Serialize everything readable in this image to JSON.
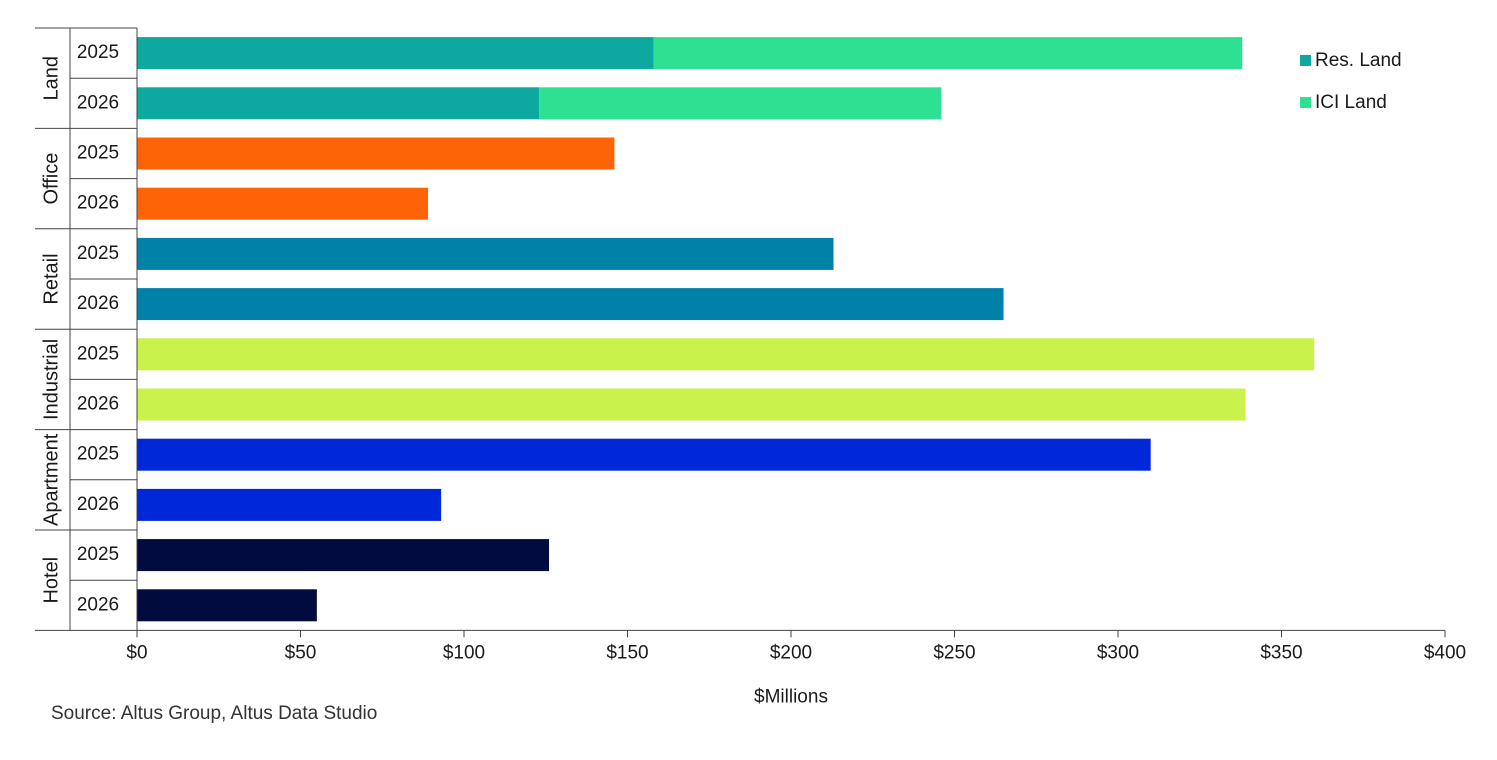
{
  "chart_data": {
    "type": "bar",
    "orientation": "horizontal",
    "stacked": true,
    "groups": [
      {
        "name": "Land",
        "rows": [
          {
            "year": "2025",
            "segments": [
              {
                "series": "Res. Land",
                "value": 158
              },
              {
                "series": "ICI Land",
                "value": 180
              }
            ]
          },
          {
            "year": "2026",
            "segments": [
              {
                "series": "Res. Land",
                "value": 123
              },
              {
                "series": "ICI Land",
                "value": 123
              }
            ]
          }
        ]
      },
      {
        "name": "Office",
        "rows": [
          {
            "year": "2025",
            "segments": [
              {
                "series": "Office",
                "value": 146
              }
            ]
          },
          {
            "year": "2026",
            "segments": [
              {
                "series": "Office",
                "value": 89
              }
            ]
          }
        ]
      },
      {
        "name": "Retail",
        "rows": [
          {
            "year": "2025",
            "segments": [
              {
                "series": "Retail",
                "value": 213
              }
            ]
          },
          {
            "year": "2026",
            "segments": [
              {
                "series": "Retail",
                "value": 265
              }
            ]
          }
        ]
      },
      {
        "name": "Industrial",
        "rows": [
          {
            "year": "2025",
            "segments": [
              {
                "series": "Industrial",
                "value": 360
              }
            ]
          },
          {
            "year": "2026",
            "segments": [
              {
                "series": "Industrial",
                "value": 339
              }
            ]
          }
        ]
      },
      {
        "name": "Apartment",
        "rows": [
          {
            "year": "2025",
            "segments": [
              {
                "series": "Apartment",
                "value": 310
              }
            ]
          },
          {
            "year": "2026",
            "segments": [
              {
                "series": "Apartment",
                "value": 93
              }
            ]
          }
        ]
      },
      {
        "name": "Hotel",
        "rows": [
          {
            "year": "2025",
            "segments": [
              {
                "series": "Hotel",
                "value": 126
              }
            ]
          },
          {
            "year": "2026",
            "segments": [
              {
                "series": "Hotel",
                "value": 55
              }
            ]
          }
        ]
      }
    ],
    "series_colors": {
      "Res. Land": "#0da89f",
      "ICI Land": "#2ee091",
      "Office": "#ff6308",
      "Retail": "#0081a7",
      "Industrial": "#c9f24a",
      "Apartment": "#0028d8",
      "Hotel": "#020b3d"
    },
    "legend": {
      "position": "top-right",
      "items": [
        {
          "label": "Res. Land",
          "series": "Res. Land"
        },
        {
          "label": "ICI Land",
          "series": "ICI Land"
        }
      ]
    },
    "xlim": [
      0,
      400
    ],
    "xticks": [
      0,
      50,
      100,
      150,
      200,
      250,
      300,
      350,
      400
    ],
    "xtick_labels": [
      "$0",
      "$50",
      "$100",
      "$150",
      "$200",
      "$250",
      "$300",
      "$350",
      "$400"
    ],
    "xlabel": "$Millions",
    "grid": false
  },
  "source": "Source:  Altus Group, Altus Data Studio"
}
